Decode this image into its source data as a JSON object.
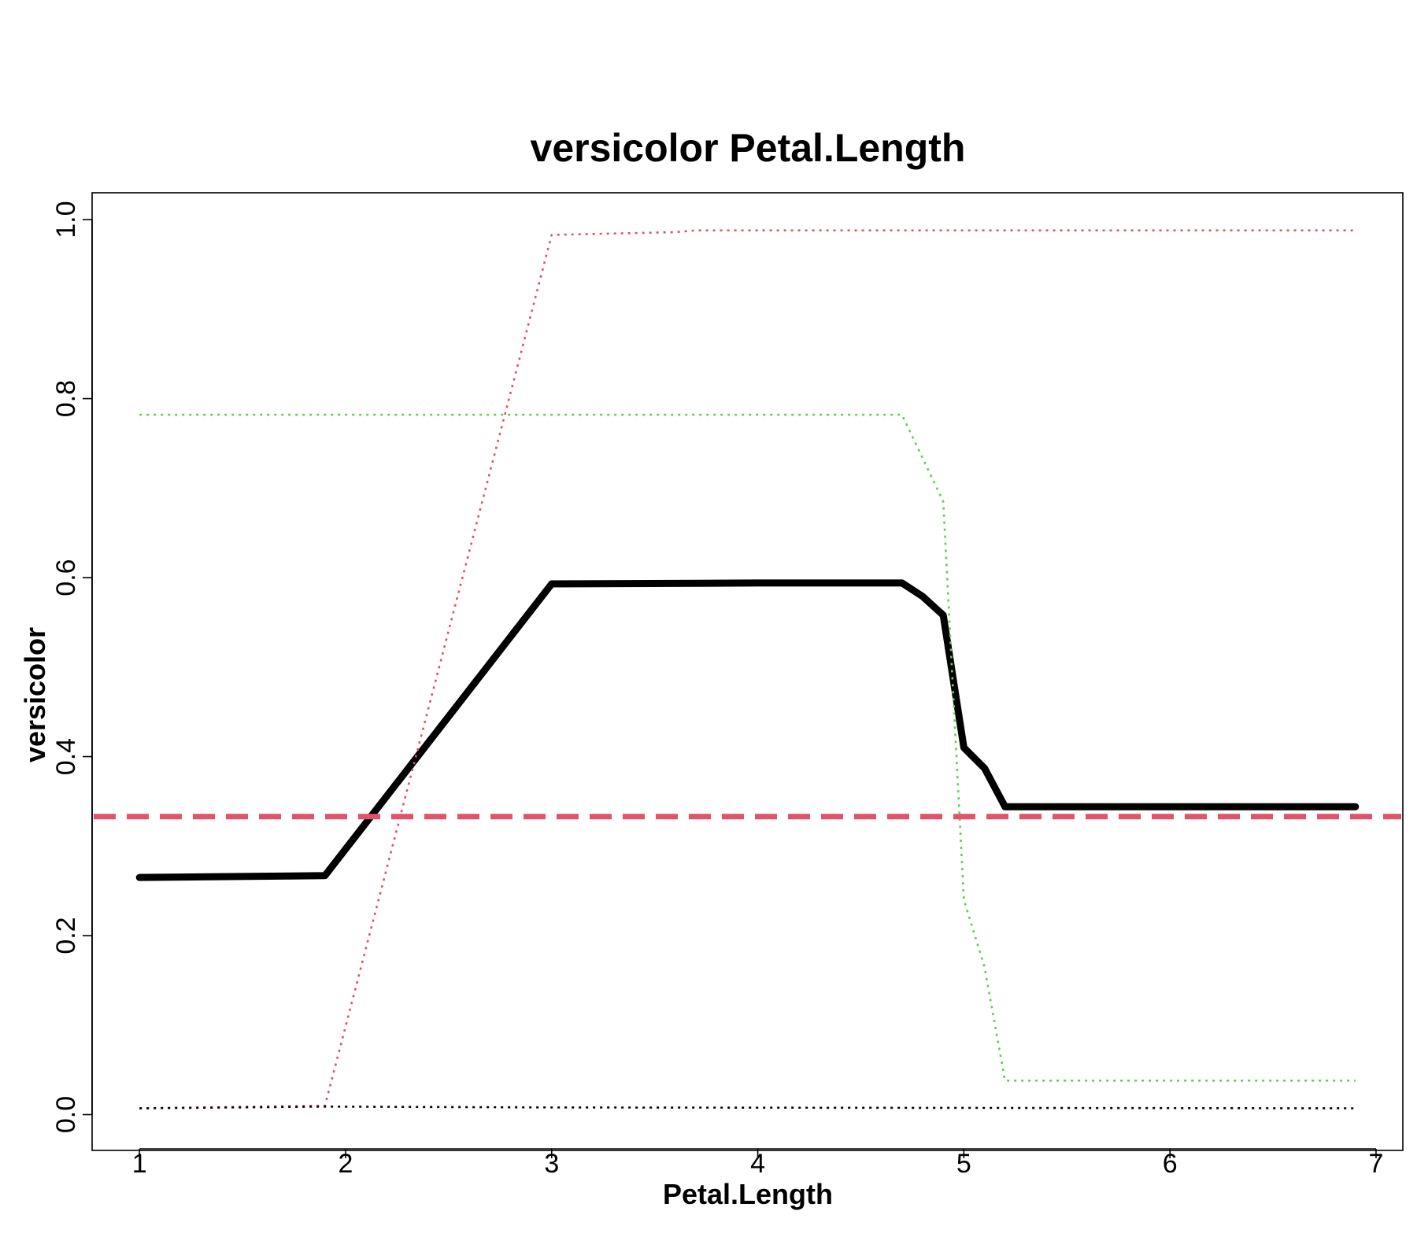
{
  "chart_data": {
    "type": "line",
    "title": "versicolor  Petal.Length",
    "xlabel": "Petal.Length",
    "ylabel": "versicolor",
    "xlim": [
      0.77,
      7.13
    ],
    "ylim": [
      -0.04,
      1.03
    ],
    "x_ticks": [
      1,
      2,
      3,
      4,
      5,
      6,
      7
    ],
    "y_ticks": [
      0.0,
      0.2,
      0.4,
      0.6,
      0.8,
      1.0
    ],
    "x_tick_labels": [
      "1",
      "2",
      "3",
      "4",
      "5",
      "6",
      "7"
    ],
    "y_tick_labels": [
      "0.0",
      "0.2",
      "0.4",
      "0.6",
      "0.8",
      "1.0"
    ],
    "grid": false,
    "legend": "none",
    "series": [
      {
        "color": "#000000",
        "style": "solid-thick",
        "x": [
          1.0,
          1.9,
          3.0,
          4.0,
          4.7,
          4.8,
          4.9,
          5.0,
          5.1,
          5.2,
          6.9
        ],
        "y": [
          0.265,
          0.267,
          0.593,
          0.594,
          0.594,
          0.579,
          0.558,
          0.41,
          0.387,
          0.344,
          0.344
        ]
      },
      {
        "color": "#DF536B",
        "style": "dotted",
        "x": [
          1.0,
          1.9,
          3.0,
          3.6,
          3.7,
          6.9
        ],
        "y": [
          0.007,
          0.01,
          0.983,
          0.986,
          0.988,
          0.988
        ]
      },
      {
        "color": "#61D04F",
        "style": "dotted",
        "x": [
          1.0,
          4.7,
          4.9,
          5.0,
          5.1,
          5.2,
          6.9
        ],
        "y": [
          0.782,
          0.782,
          0.685,
          0.24,
          0.165,
          0.038,
          0.038
        ]
      },
      {
        "color": "#000000",
        "style": "dotted",
        "x": [
          1.0,
          1.9,
          3.0,
          6.9
        ],
        "y": [
          0.007,
          0.009,
          0.008,
          0.007
        ]
      }
    ],
    "reference_line": {
      "color": "#DF536B",
      "style": "dashed-thick",
      "y": 0.333
    }
  }
}
